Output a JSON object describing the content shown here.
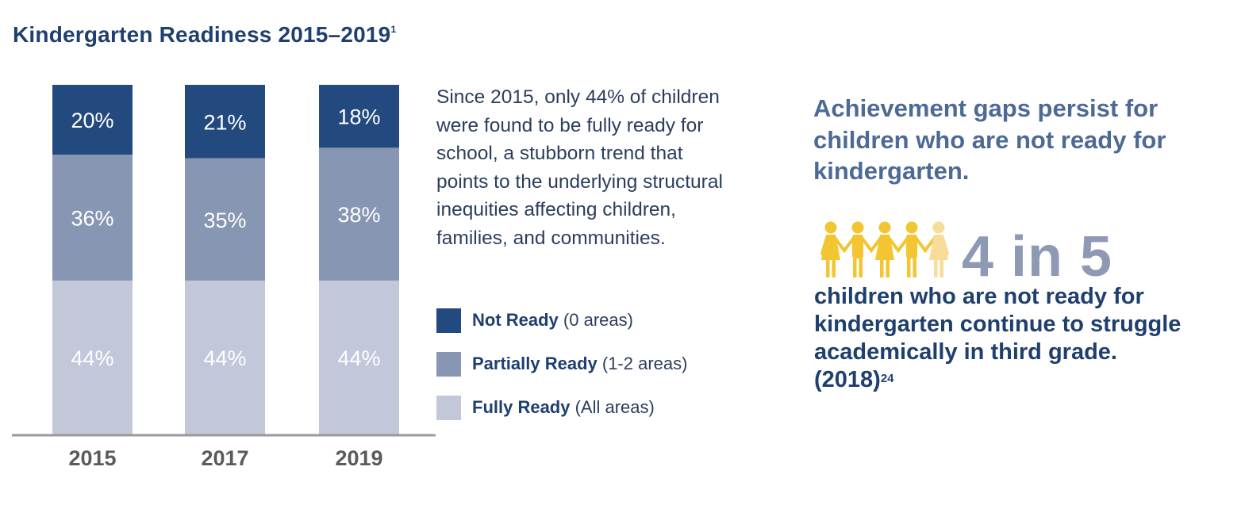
{
  "title": "Kindergarten Readiness 2015–2019",
  "title_footnote": "1",
  "chart_data": {
    "type": "bar",
    "stacked": true,
    "title": "Kindergarten Readiness 2015–2019",
    "categories": [
      "2015",
      "2017",
      "2019"
    ],
    "series": [
      {
        "name": "Fully Ready",
        "values": [
          44,
          44,
          44
        ],
        "color": "#c2c8da"
      },
      {
        "name": "Partially Ready",
        "values": [
          36,
          35,
          38
        ],
        "color": "#8796b3"
      },
      {
        "name": "Not Ready",
        "values": [
          20,
          21,
          18
        ],
        "color": "#234a7e"
      }
    ],
    "value_suffix": "%",
    "ylim": [
      0,
      100
    ]
  },
  "description": "Since 2015, only 44% of children were found to be fully ready for school, a stubborn trend that points to the underlying structural inequities affecting children, families, and communities.",
  "legend": [
    {
      "name": "Not Ready",
      "note": "(0 areas)",
      "color": "#234a7e"
    },
    {
      "name": "Partially Ready",
      "note": "(1-2 areas)",
      "color": "#8796b3"
    },
    {
      "name": "Fully Ready",
      "note": "(All areas)",
      "color": "#c2c8da"
    }
  ],
  "headline": "Achievement gaps persist for children who are not ready for kindergarten.",
  "stat": {
    "value": "4 in 5",
    "icon": "children-holding-hands-icon",
    "people_total": 5,
    "people_highlighted": 4,
    "highlight_color": "#f2c531",
    "dim_color": "#f7dd99",
    "text": "children who are not ready for kindergarten continue to struggle academically in third grade. (2018)",
    "footnote": "24"
  }
}
